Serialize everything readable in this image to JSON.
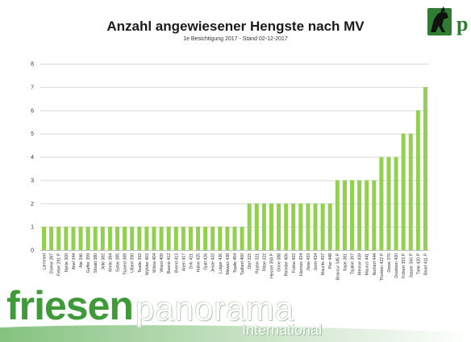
{
  "colors": {
    "bar": "#92d050",
    "grid": "#d9d9d9",
    "brand_green": "#3f9b3a"
  },
  "brand": {
    "word1": "friesen",
    "word2": "panorama",
    "word3": "International",
    "logo_icon": "horse-logo-icon"
  },
  "chart_data": {
    "type": "bar",
    "title": "Anzahl angewiesener Hengste nach MV",
    "subtitle": "1e Besichtigung 2017 - Stand 02-12-2017",
    "xlabel": "",
    "ylabel": "",
    "ylim": [
      0,
      8
    ],
    "yticks": [
      0,
      1,
      2,
      3,
      4,
      5,
      6,
      7,
      8
    ],
    "grid": true,
    "legend": "none",
    "categories": [
      "Lammert",
      "Doeke 287",
      "Fetse 291 P",
      "Nykle 300",
      "Abel 344",
      "Ate 346",
      "Gaffer 359",
      "Sibald 380",
      "Jelle 382",
      "Minte 384",
      "Sytse 385",
      "Tsjoerd 389",
      "Ulbert 390",
      "Teade 392",
      "Wylster 403",
      "Wikke 404",
      "Wierd 409",
      "Beene 412",
      "Brend 413",
      "Arjen 417",
      "Dirk 421",
      "Haike 425",
      "Gjalt 426",
      "Jesse 432",
      "Lutger 436",
      "Mewes 438",
      "Tsjalle 454",
      "Tjalbert 460",
      "Olof 315",
      "Rypke 321",
      "Ritse 322",
      "Hessel 358 P",
      "Onne 388",
      "Reinder 406",
      "Fokke 422",
      "Hannes 424",
      "Jisse 433",
      "Jorrit 434",
      "Maurits 437",
      "Pier 448",
      "Bravour 345 P",
      "Sape 381",
      "Tsjalke 397",
      "Meinse 439",
      "Maurus 441",
      "Norbert 444",
      "Thorben 422 P",
      "Oewe 376",
      "Doaitsen 420",
      "Folkert 353 P",
      "Jasper 366 P",
      "Tiete 420 P",
      "Beart 411 P"
    ],
    "values": [
      1,
      1,
      1,
      1,
      1,
      1,
      1,
      1,
      1,
      1,
      1,
      1,
      1,
      1,
      1,
      1,
      1,
      1,
      1,
      1,
      1,
      1,
      1,
      1,
      1,
      1,
      1,
      1,
      2,
      2,
      2,
      2,
      2,
      2,
      2,
      2,
      2,
      2,
      2,
      2,
      3,
      3,
      3,
      3,
      3,
      3,
      4,
      4,
      4,
      5,
      5,
      6,
      7
    ]
  }
}
